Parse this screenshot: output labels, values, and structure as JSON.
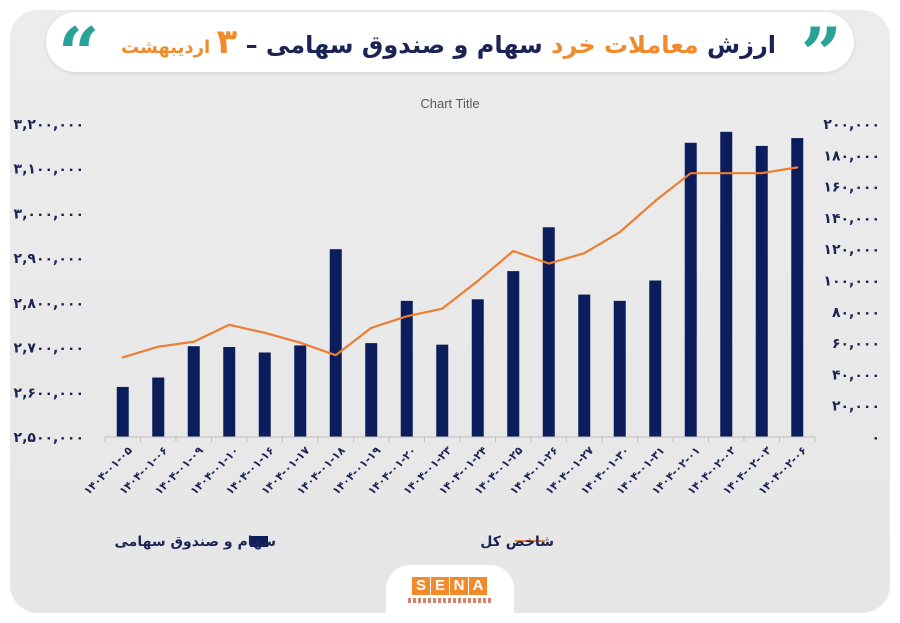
{
  "header": {
    "title_part1": "ارزش ",
    "title_highlight": "معاملات خرد",
    "title_part2": " سهام و صندوق سهامی – ",
    "title_number": "۳",
    "title_date": " اردیبهشت"
  },
  "logo": {
    "letters": [
      "S",
      "E",
      "N",
      "A"
    ],
    "tagline": "پایگاه خبری بازار سرمایه ایران"
  },
  "colors": {
    "bar": "#0c1d5c",
    "line": "#ed7d31",
    "accent_teal": "#29a39a",
    "accent_orange": "#f18a2b"
  },
  "chart_data": {
    "type": "bar+line",
    "title": "Chart Title",
    "categories": [
      "۱۴۰۴-۰۱-۰۵",
      "۱۴۰۴-۰۱-۰۶",
      "۱۴۰۴-۰۱-۰۹",
      "۱۴۰۴-۰۱-۱۰",
      "۱۴۰۴-۰۱-۱۶",
      "۱۴۰۴-۰۱-۱۷",
      "۱۴۰۴-۰۱-۱۸",
      "۱۴۰۴-۰۱-۱۹",
      "۱۴۰۴-۰۱-۲۰",
      "۱۴۰۴-۰۱-۲۳",
      "۱۴۰۴-۰۱-۲۴",
      "۱۴۰۴-۰۱-۲۵",
      "۱۴۰۴-۰۱-۲۶",
      "۱۴۰۴-۰۱-۲۷",
      "۱۴۰۴-۰۱-۳۰",
      "۱۴۰۴-۰۱-۳۱",
      "۱۴۰۴-۰۲-۰۱",
      "۱۴۰۴-۰۲-۰۲",
      "۱۴۰۴-۰۲-۰۳",
      "۱۴۰۴-۰۲-۰۶"
    ],
    "series": [
      {
        "name": "سهام و صندوق سهامی",
        "kind": "bar",
        "axis": "right",
        "values": [
          32000,
          38000,
          58000,
          57500,
          54000,
          58500,
          120000,
          60000,
          87000,
          59000,
          88000,
          106000,
          134000,
          91000,
          87000,
          100000,
          188000,
          195000,
          186000,
          191000
        ]
      },
      {
        "name": "شاخص کل",
        "kind": "line",
        "axis": "left",
        "values": [
          2678000,
          2702000,
          2713000,
          2751000,
          2733000,
          2711000,
          2683000,
          2744000,
          2770000,
          2787000,
          2849000,
          2916000,
          2888000,
          2911000,
          2958000,
          3028000,
          3090000,
          3090000,
          3090000,
          3103000
        ]
      }
    ],
    "y_left": {
      "min": 2500000,
      "max": 3200000,
      "step": 100000,
      "ticks": [
        "۲,۵۰۰,۰۰۰",
        "۲,۶۰۰,۰۰۰",
        "۲,۷۰۰,۰۰۰",
        "۲,۸۰۰,۰۰۰",
        "۲,۹۰۰,۰۰۰",
        "۳,۰۰۰,۰۰۰",
        "۳,۱۰۰,۰۰۰",
        "۳,۲۰۰,۰۰۰"
      ]
    },
    "y_right": {
      "min": 0,
      "max": 200000,
      "step": 20000,
      "ticks": [
        "۰",
        "۲۰,۰۰۰",
        "۴۰,۰۰۰",
        "۶۰,۰۰۰",
        "۸۰,۰۰۰",
        "۱۰۰,۰۰۰",
        "۱۲۰,۰۰۰",
        "۱۴۰,۰۰۰",
        "۱۶۰,۰۰۰",
        "۱۸۰,۰۰۰",
        "۲۰۰,۰۰۰"
      ]
    },
    "legend": {
      "position": "bottom",
      "items": [
        "شاخص کل",
        "سهام و صندوق سهامی"
      ]
    },
    "grid": false
  }
}
